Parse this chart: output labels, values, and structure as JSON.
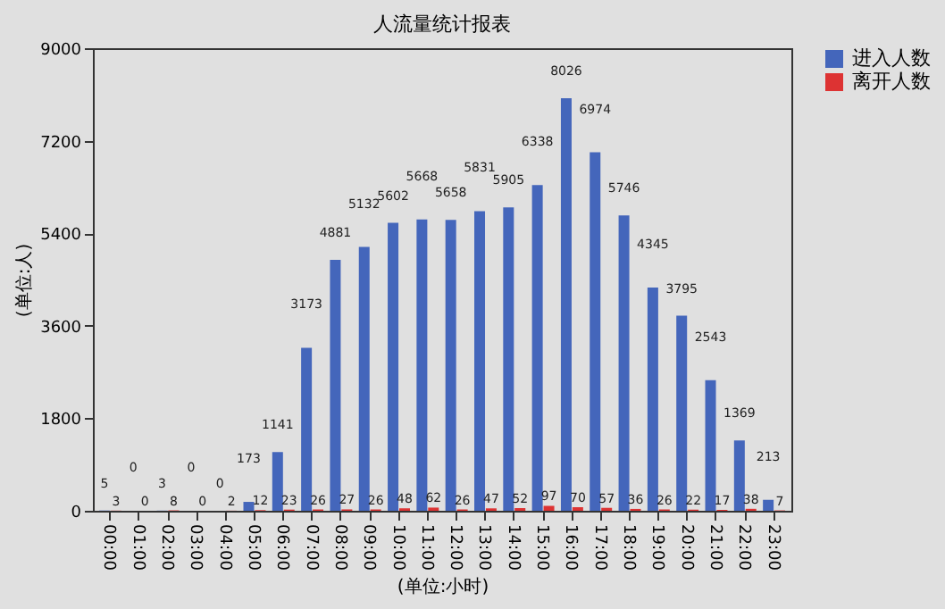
{
  "chart_data": {
    "type": "bar",
    "title": "人流量统计报表",
    "xlabel": "(单位:小时)",
    "ylabel": "(单位:人)",
    "categories": [
      "00:00",
      "01:00",
      "02:00",
      "03:00",
      "04:00",
      "05:00",
      "06:00",
      "07:00",
      "08:00",
      "09:00",
      "10:00",
      "11:00",
      "12:00",
      "13:00",
      "14:00",
      "15:00",
      "16:00",
      "17:00",
      "18:00",
      "19:00",
      "20:00",
      "21:00",
      "22:00",
      "23:00"
    ],
    "series": [
      {
        "name": "进入人数",
        "color": "#4466bb",
        "values": [
          5,
          0,
          3,
          0,
          0,
          173,
          1141,
          3173,
          4881,
          5132,
          5602,
          5668,
          5658,
          5831,
          5905,
          6338,
          8026,
          6974,
          5746,
          4345,
          3795,
          2543,
          1369,
          213
        ]
      },
      {
        "name": "离开人数",
        "color": "#dd3333",
        "values": [
          3,
          0,
          8,
          0,
          2,
          12,
          23,
          26,
          27,
          26,
          48,
          62,
          26,
          47,
          52,
          97,
          70,
          57,
          36,
          26,
          22,
          17,
          38,
          7
        ]
      }
    ],
    "ylim": [
      0,
      9000
    ],
    "yticks": [
      0,
      1800,
      3600,
      5400,
      7200,
      9000
    ],
    "grid": false,
    "legend": "right",
    "data_labels": true
  }
}
